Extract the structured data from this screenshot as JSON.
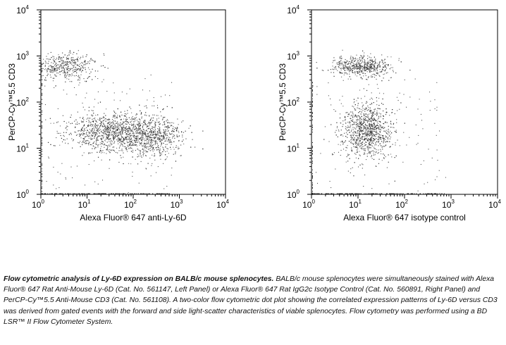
{
  "chart_data": [
    {
      "type": "scatter",
      "panel": "left",
      "xlabel": "Alexa Fluor® 647 anti-Ly-6D",
      "ylabel": "PerCP-Cy™5.5 CD3",
      "xscale": "log",
      "yscale": "log",
      "xlim": [
        1,
        10000
      ],
      "ylim": [
        1,
        10000
      ],
      "x_ticks": [
        "10^0",
        "10^1",
        "10^2",
        "10^3",
        "10^4"
      ],
      "y_ticks": [
        "10^0",
        "10^1",
        "10^2",
        "10^3",
        "10^4"
      ],
      "populations": [
        {
          "center_x": 3.5,
          "center_y": 600,
          "spread_x_log": 0.35,
          "spread_y_log": 0.14,
          "count": 420
        },
        {
          "center_x": 30,
          "center_y": 22,
          "spread_x_log": 0.45,
          "spread_y_log": 0.22,
          "count": 900
        },
        {
          "center_x": 250,
          "center_y": 18,
          "spread_x_log": 0.35,
          "spread_y_log": 0.22,
          "count": 650
        }
      ]
    },
    {
      "type": "scatter",
      "panel": "right",
      "xlabel": "Alexa Fluor® 647 isotype control",
      "ylabel": "PerCP-Cy™5.5 CD3",
      "xscale": "log",
      "yscale": "log",
      "xlim": [
        1,
        10000
      ],
      "ylim": [
        1,
        10000
      ],
      "x_ticks": [
        "10^0",
        "10^1",
        "10^2",
        "10^3",
        "10^4"
      ],
      "y_ticks": [
        "10^0",
        "10^1",
        "10^2",
        "10^3",
        "10^4"
      ],
      "populations": [
        {
          "center_x": 12,
          "center_y": 600,
          "spread_x_log": 0.32,
          "spread_y_log": 0.12,
          "count": 500
        },
        {
          "center_x": 15,
          "center_y": 25,
          "spread_x_log": 0.28,
          "spread_y_log": 0.3,
          "count": 900
        }
      ]
    }
  ],
  "caption": {
    "title": "Flow cytometric analysis of Ly-6D expression on BALB/c mouse splenocytes.",
    "body": "BALB/c mouse splenocytes were simultaneously stained with Alexa Fluor® 647 Rat Anti-Mouse Ly-6D (Cat. No. 561147, Left Panel) or Alexa Fluor® 647 Rat IgG2c Isotype Control (Cat. No. 560891, Right Panel) and PerCP-Cy™5.5 Anti-Mouse CD3 (Cat. No. 561108). A two-color flow cytometric dot plot showing the correlated expression patterns of Ly-6D versus CD3 was derived from gated events with the forward and side light-scatter characteristics of viable splenocytes. Flow cytometry was performed using a BD LSR™ II Flow Cytometer System."
  }
}
